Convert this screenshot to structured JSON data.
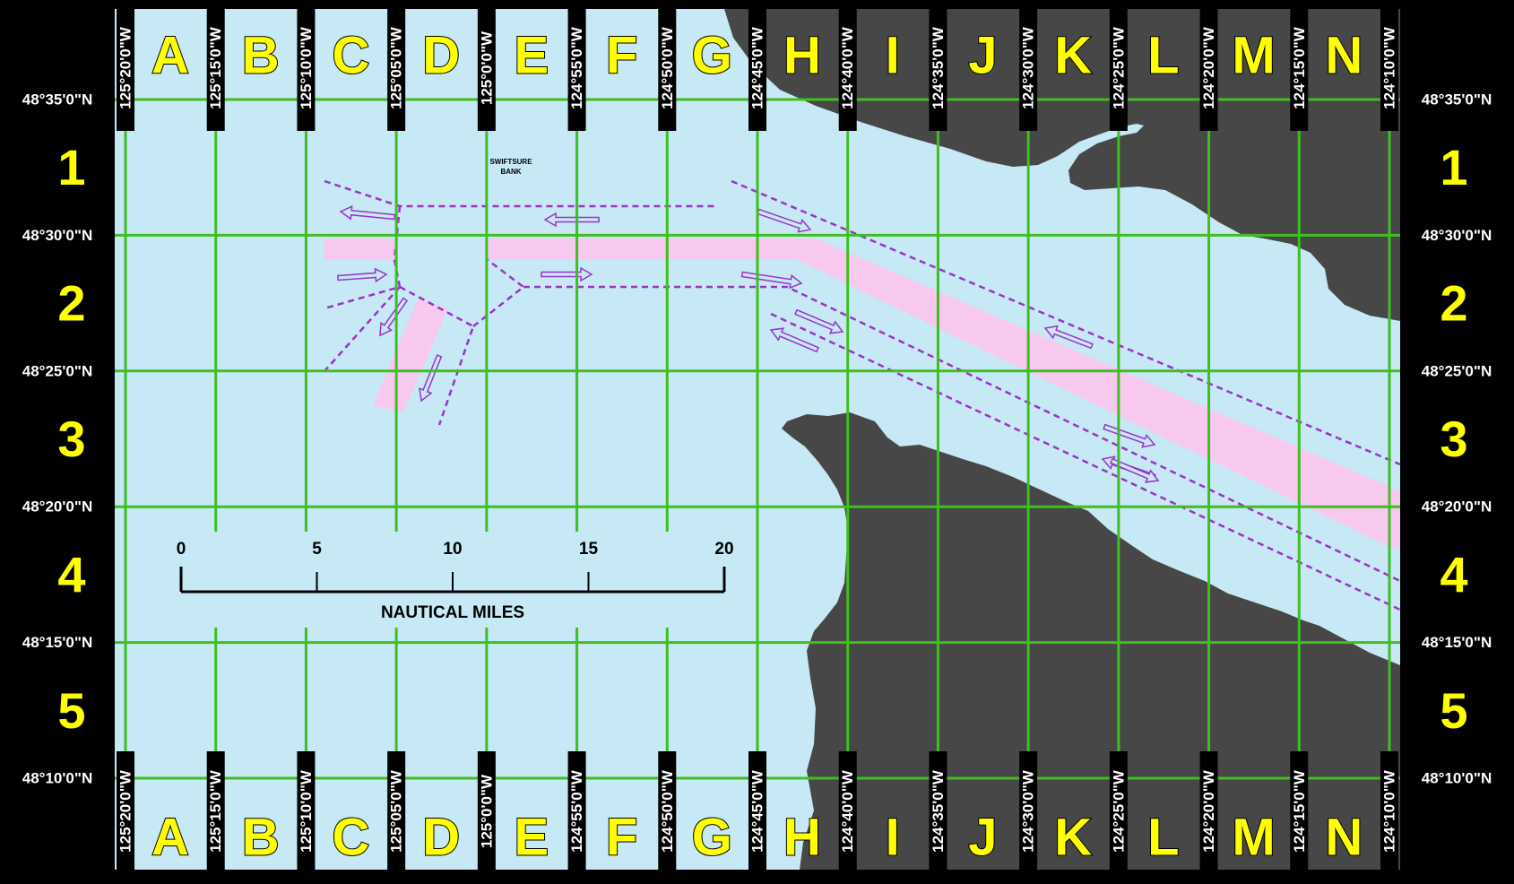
{
  "map": {
    "colors": {
      "frame": "#000000",
      "water": "#c7e8f5",
      "land": "#474747",
      "grid": "#3fbf1f",
      "grid_letter": "#ffff00",
      "lane": "#f7c9ef",
      "separation": "#9933cc",
      "scale": "#000000"
    },
    "columns": [
      "A",
      "B",
      "C",
      "D",
      "E",
      "F",
      "G",
      "H",
      "I",
      "J",
      "K",
      "L",
      "M",
      "N"
    ],
    "rows": [
      "1",
      "2",
      "3",
      "4",
      "5"
    ],
    "longitudes": [
      "125°20'0\"W",
      "125°15'0\"W",
      "125°10'0\"W",
      "125°05'0\"W",
      "125°0'0\"W",
      "124°55'0\"W",
      "124°50'0\"W",
      "124°45'0\"W",
      "124°40'0\"W",
      "124°35'0\"W",
      "124°30'0\"W",
      "124°25'0\"W",
      "124°20'0\"W",
      "124°15'0\"W",
      "124°10'0\"W"
    ],
    "latitudes": [
      "48°35'0\"N",
      "48°30'0\"N",
      "48°25'0\"N",
      "48°20'0\"N",
      "48°15'0\"N",
      "48°10'0\"N"
    ],
    "bank_label": [
      "SWIFTSURE",
      "BANK"
    ],
    "scale_bar": {
      "ticks": [
        "0",
        "5",
        "10",
        "15",
        "20"
      ],
      "unit": "NAUTICAL MILES"
    }
  }
}
